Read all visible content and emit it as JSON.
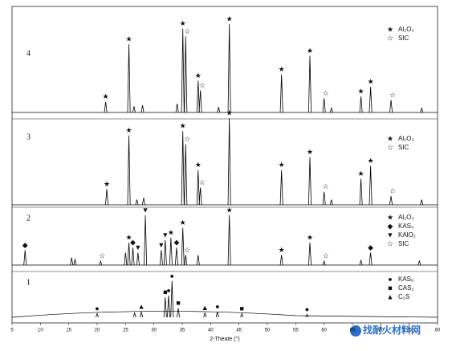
{
  "chart_data": {
    "type": "xrd",
    "xlabel": "2-Theate (°)",
    "xlim": [
      5,
      80
    ],
    "xticks": [
      5,
      10,
      15,
      20,
      25,
      30,
      35,
      40,
      45,
      50,
      55,
      60,
      65,
      70,
      75,
      80
    ],
    "color": "#000000",
    "series": [
      {
        "name": "1",
        "x": [
          20.0,
          26.6,
          27.8,
          32.0,
          32.6,
          33.2,
          34.3,
          39.0,
          41.2,
          45.5,
          57.0
        ],
        "values": [
          10,
          12,
          15,
          55,
          60,
          100,
          25,
          12,
          15,
          10,
          8
        ],
        "markers": [
          {
            "x": 20.0,
            "symbol": "●"
          },
          {
            "x": 27.8,
            "symbol": "▲"
          },
          {
            "x": 32.0,
            "symbol": "■"
          },
          {
            "x": 32.6,
            "symbol": "●"
          },
          {
            "x": 33.2,
            "symbol": "●"
          },
          {
            "x": 34.3,
            "symbol": "■"
          },
          {
            "x": 39.0,
            "symbol": "▲"
          },
          {
            "x": 41.2,
            "symbol": "●"
          },
          {
            "x": 45.5,
            "symbol": "■"
          },
          {
            "x": 57.0,
            "symbol": "●"
          }
        ],
        "legend": [
          {
            "symbol": "●",
            "label": "KAS₆"
          },
          {
            "symbol": "■",
            "label": "CAS₂"
          },
          {
            "symbol": "▲",
            "label": "C₂S"
          }
        ]
      },
      {
        "name": "2",
        "x": [
          7.3,
          15.5,
          16.1,
          20.6,
          25.0,
          25.6,
          26.3,
          27.2,
          28.5,
          31.3,
          32.0,
          33.0,
          34.0,
          35.1,
          35.6,
          37.8,
          43.3,
          52.5,
          57.5,
          60.0,
          66.5,
          68.2,
          76.8
        ],
        "values": [
          30,
          15,
          12,
          8,
          25,
          45,
          35,
          25,
          100,
          30,
          50,
          55,
          35,
          75,
          20,
          20,
          100,
          20,
          45,
          8,
          10,
          25,
          8
        ],
        "markers": [
          {
            "x": 7.3,
            "symbol": "◆"
          },
          {
            "x": 20.6,
            "symbol": "☆"
          },
          {
            "x": 25.6,
            "symbol": "★"
          },
          {
            "x": 26.3,
            "symbol": "◆"
          },
          {
            "x": 27.2,
            "symbol": "▼"
          },
          {
            "x": 28.5,
            "symbol": "▼"
          },
          {
            "x": 31.3,
            "symbol": "▼"
          },
          {
            "x": 32.0,
            "symbol": "▼"
          },
          {
            "x": 33.0,
            "symbol": "★"
          },
          {
            "x": 34.0,
            "symbol": "◆"
          },
          {
            "x": 35.1,
            "symbol": "★"
          },
          {
            "x": 35.6,
            "symbol": "☆"
          },
          {
            "x": 43.3,
            "symbol": "★"
          },
          {
            "x": 52.5,
            "symbol": "★"
          },
          {
            "x": 57.5,
            "symbol": "★"
          },
          {
            "x": 60.0,
            "symbol": "☆"
          },
          {
            "x": 68.2,
            "symbol": "◆"
          }
        ],
        "legend": [
          {
            "symbol": "★",
            "label": "Al₂O₃"
          },
          {
            "symbol": "◆",
            "label": "KAS₄"
          },
          {
            "symbol": "▼",
            "label": "KAlO₂"
          },
          {
            "symbol": "☆",
            "label": "SIC"
          }
        ]
      },
      {
        "name": "3",
        "x": [
          21.7,
          25.6,
          27.0,
          28.2,
          35.1,
          35.6,
          37.8,
          38.2,
          43.3,
          52.5,
          57.5,
          60.0,
          61.3,
          66.5,
          68.2,
          71.8,
          77.2
        ],
        "values": [
          18,
          80,
          6,
          8,
          85,
          70,
          40,
          20,
          100,
          40,
          55,
          15,
          6,
          30,
          45,
          10,
          6
        ],
        "markers": [
          {
            "x": 21.7,
            "symbol": "★"
          },
          {
            "x": 25.6,
            "symbol": "★"
          },
          {
            "x": 35.1,
            "symbol": "★"
          },
          {
            "x": 35.6,
            "symbol": "☆"
          },
          {
            "x": 37.8,
            "symbol": "★"
          },
          {
            "x": 38.2,
            "symbol": "☆"
          },
          {
            "x": 43.3,
            "symbol": "★"
          },
          {
            "x": 52.5,
            "symbol": "★"
          },
          {
            "x": 57.5,
            "symbol": "★"
          },
          {
            "x": 60.0,
            "symbol": "☆"
          },
          {
            "x": 66.5,
            "symbol": "★"
          },
          {
            "x": 68.2,
            "symbol": "★"
          },
          {
            "x": 71.8,
            "symbol": "☆"
          }
        ],
        "legend": [
          {
            "symbol": "★",
            "label": "Al₂O₃"
          },
          {
            "symbol": "☆",
            "label": "SIC"
          }
        ]
      },
      {
        "name": "4",
        "x": [
          21.5,
          25.6,
          26.5,
          28.0,
          34.1,
          35.1,
          35.6,
          37.8,
          38.2,
          41.4,
          43.3,
          52.5,
          57.5,
          60.0,
          61.3,
          66.5,
          68.2,
          71.8,
          77.2
        ],
        "values": [
          12,
          77,
          7,
          8,
          10,
          95,
          86,
          36,
          25,
          6,
          100,
          43,
          64,
          16,
          5,
          18,
          29,
          14,
          5
        ],
        "markers": [
          {
            "x": 21.5,
            "symbol": "★"
          },
          {
            "x": 25.6,
            "symbol": "★"
          },
          {
            "x": 35.1,
            "symbol": "★"
          },
          {
            "x": 35.6,
            "symbol": "☆"
          },
          {
            "x": 37.8,
            "symbol": "★"
          },
          {
            "x": 38.2,
            "symbol": "☆"
          },
          {
            "x": 43.3,
            "symbol": "★"
          },
          {
            "x": 52.5,
            "symbol": "★"
          },
          {
            "x": 57.5,
            "symbol": "★"
          },
          {
            "x": 60.0,
            "symbol": "☆"
          },
          {
            "x": 66.5,
            "symbol": "★"
          },
          {
            "x": 68.2,
            "symbol": "★"
          },
          {
            "x": 71.8,
            "symbol": "☆"
          }
        ],
        "legend": [
          {
            "symbol": "★",
            "label": "Al₂O₃"
          },
          {
            "symbol": "☆",
            "label": "SIC"
          }
        ]
      }
    ],
    "watermark": "找耐火材料网"
  }
}
